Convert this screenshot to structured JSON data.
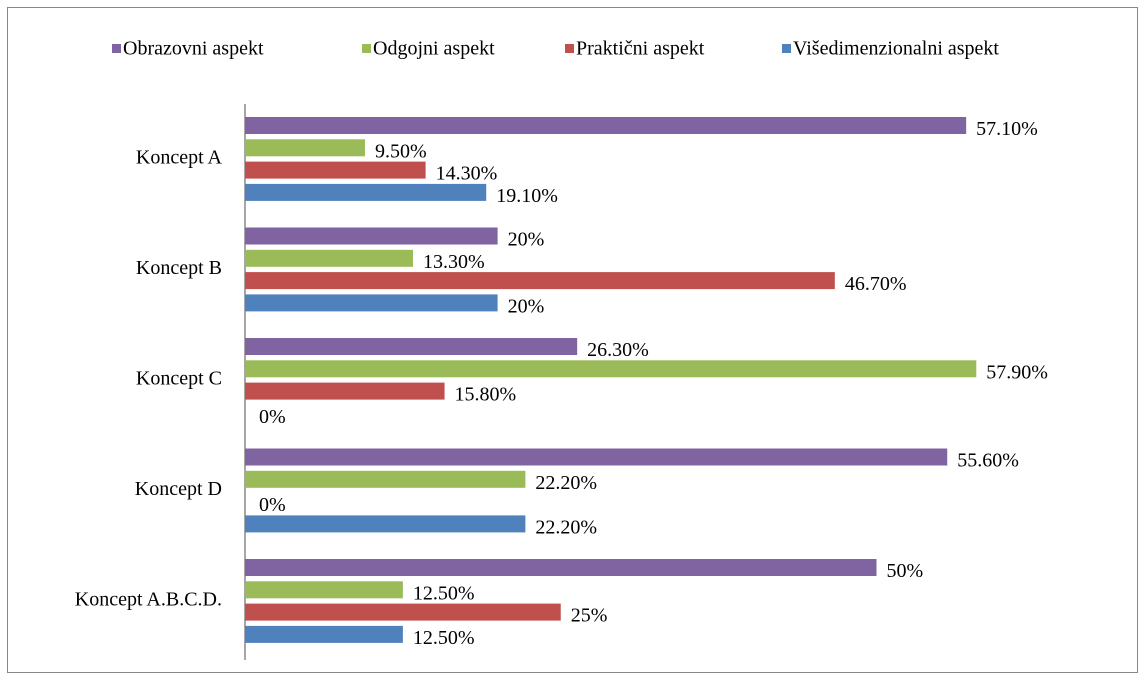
{
  "chart_data": {
    "type": "hbar",
    "categories": [
      "Koncept A",
      "Koncept B",
      "Koncept C",
      "Koncept D",
      "Koncept A.B.C.D."
    ],
    "series": [
      {
        "name": "Obrazovni aspekt",
        "color": "#8064a2",
        "values": [
          57.1,
          20,
          26.3,
          55.6,
          50
        ],
        "value_labels": [
          "57.10%",
          "20%",
          "26.30%",
          "55.60%",
          "50%"
        ]
      },
      {
        "name": "Odgojni aspekt",
        "color": "#9bbb59",
        "values": [
          9.5,
          13.3,
          57.9,
          22.2,
          12.5
        ],
        "value_labels": [
          "9.50%",
          "13.30%",
          "57.90%",
          "22.20%",
          "12.50%"
        ]
      },
      {
        "name": "Praktični aspekt",
        "color": "#c0504d",
        "values": [
          14.3,
          46.7,
          15.8,
          0,
          25
        ],
        "value_labels": [
          "14.30%",
          "46.70%",
          "15.80%",
          "0%",
          "25%"
        ]
      },
      {
        "name": "Višedimenzionalni aspekt",
        "color": "#4f81bd",
        "values": [
          19.1,
          20,
          0,
          22.2,
          12.5
        ],
        "value_labels": [
          "19.10%",
          "20%",
          "0%",
          "22.20%",
          "12.50%"
        ]
      }
    ],
    "legend": "top"
  }
}
